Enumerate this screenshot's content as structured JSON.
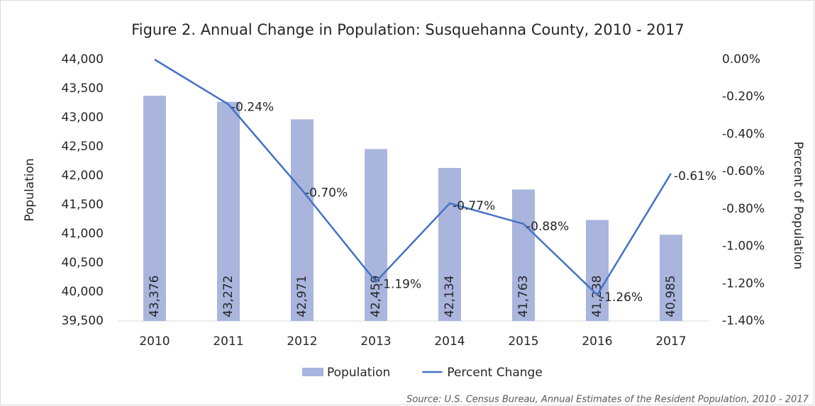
{
  "chart_data": {
    "type": "bar",
    "title": "Figure 2. Annual Change in Population: Susquehanna County, 2010 - 2017",
    "y_label": "Population",
    "y2_label": "Percent of Population",
    "source": "Source: U.S. Census Bureau, Annual Estimates of the Resident Population, 2010 - 2017",
    "categories": [
      "2010",
      "2011",
      "2012",
      "2013",
      "2014",
      "2015",
      "2016",
      "2017"
    ],
    "series": [
      {
        "name": "Population",
        "type": "bar",
        "color": "#a9b5dd",
        "values": [
          43376,
          43272,
          42971,
          42459,
          42134,
          41763,
          41238,
          40985
        ],
        "value_labels": [
          "43,376",
          "43,272",
          "42,971",
          "42,459",
          "42,134",
          "41,763",
          "41,238",
          "40,985"
        ]
      },
      {
        "name": "Percent Change",
        "type": "line",
        "axis": "y2",
        "color": "#4472c4",
        "values": [
          0,
          -0.24,
          -0.7,
          -1.19,
          -0.77,
          -0.88,
          -1.26,
          -0.61
        ],
        "value_labels": [
          null,
          "-0.24%",
          "-0.70%",
          "-1.19%",
          "-0.77%",
          "-0.88%",
          "-1.26%",
          "-0.61%"
        ]
      }
    ],
    "ylim": [
      39500,
      44000
    ],
    "yticks": [
      {
        "value": 39500,
        "label": "39,500"
      },
      {
        "value": 40000,
        "label": "40,000"
      },
      {
        "value": 40500,
        "label": "40,500"
      },
      {
        "value": 41000,
        "label": "41,000"
      },
      {
        "value": 41500,
        "label": "41,500"
      },
      {
        "value": 42000,
        "label": "42,000"
      },
      {
        "value": 42500,
        "label": "42,500"
      },
      {
        "value": 43000,
        "label": "43,000"
      },
      {
        "value": 43500,
        "label": "43,500"
      },
      {
        "value": 44000,
        "label": "44,000"
      }
    ],
    "y2lim": [
      -1.4,
      0
    ],
    "y2ticks": [
      {
        "value": -1.4,
        "label": "-1.40%"
      },
      {
        "value": -1.2,
        "label": "-1.20%"
      },
      {
        "value": -1.0,
        "label": "-1.00%"
      },
      {
        "value": -0.8,
        "label": "-0.80%"
      },
      {
        "value": -0.6,
        "label": "-0.60%"
      },
      {
        "value": -0.4,
        "label": "-0.40%"
      },
      {
        "value": -0.2,
        "label": "-0.20%"
      },
      {
        "value": 0,
        "label": "0.00%"
      }
    ],
    "legend": "bottom"
  }
}
